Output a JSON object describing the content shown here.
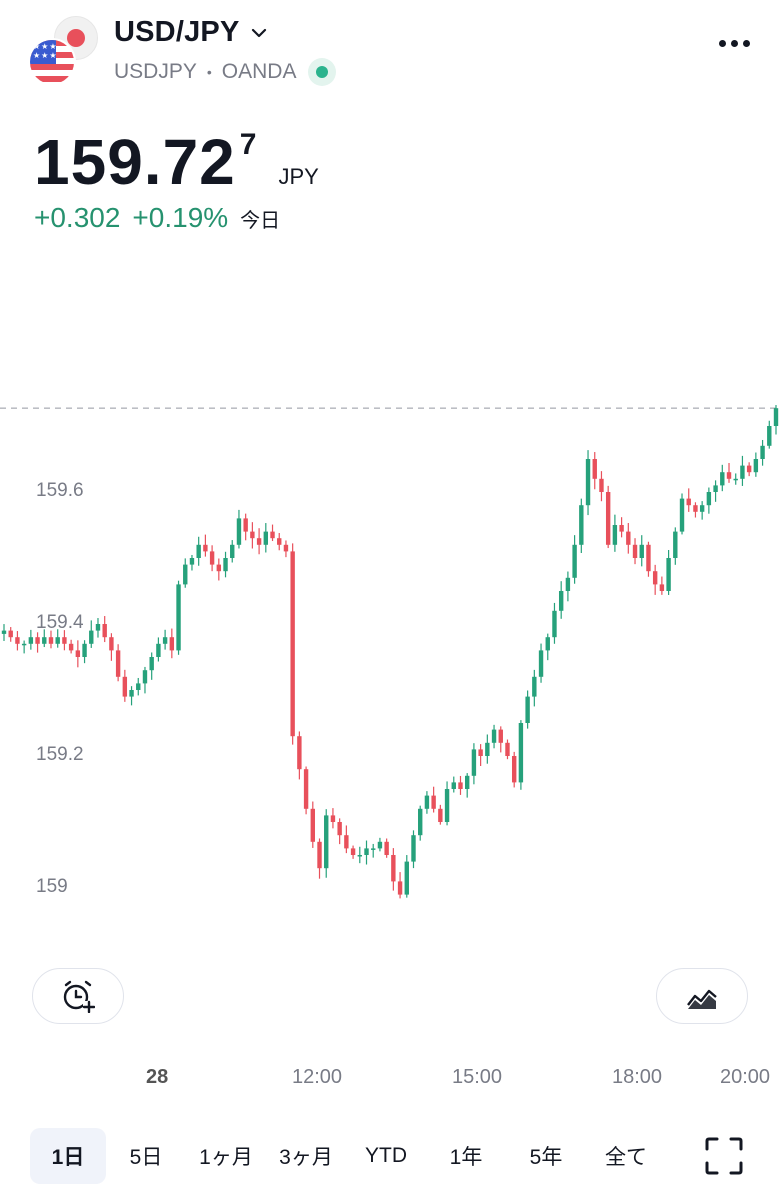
{
  "header": {
    "symbol_title": "USD/JPY",
    "symbol_code": "USDJPY",
    "separator": "•",
    "exchange": "OANDA",
    "market_status_color": "#2bb38d"
  },
  "quote": {
    "price_main": "159.72",
    "price_sup": "7",
    "currency": "JPY",
    "change": "+0.302",
    "change_pct": "+0.19%",
    "period": "今日",
    "up_color": "#26926f"
  },
  "chart_data": {
    "type": "candlestick",
    "y_ticks": [
      "159.6",
      "159.4",
      "159.2",
      "159"
    ],
    "ylim": [
      158.95,
      159.75
    ],
    "last_price": 159.727,
    "x_labels": [
      "28",
      "12:00",
      "15:00",
      "18:00",
      "20:00"
    ],
    "up_color": "#26a17b",
    "down_color": "#e8505b",
    "close_series": [
      159.39,
      159.38,
      159.37,
      159.37,
      159.38,
      159.37,
      159.38,
      159.37,
      159.38,
      159.37,
      159.36,
      159.35,
      159.37,
      159.39,
      159.4,
      159.38,
      159.36,
      159.32,
      159.29,
      159.3,
      159.31,
      159.33,
      159.35,
      159.37,
      159.38,
      159.36,
      159.46,
      159.49,
      159.5,
      159.52,
      159.51,
      159.49,
      159.48,
      159.5,
      159.52,
      159.56,
      159.54,
      159.53,
      159.52,
      159.54,
      159.53,
      159.52,
      159.51,
      159.23,
      159.18,
      159.12,
      159.07,
      159.03,
      159.11,
      159.1,
      159.08,
      159.06,
      159.05,
      159.05,
      159.06,
      159.06,
      159.07,
      159.05,
      159.01,
      158.99,
      159.04,
      159.08,
      159.12,
      159.14,
      159.12,
      159.1,
      159.15,
      159.16,
      159.15,
      159.17,
      159.21,
      159.2,
      159.22,
      159.24,
      159.22,
      159.2,
      159.16,
      159.25,
      159.29,
      159.32,
      159.36,
      159.38,
      159.42,
      159.45,
      159.47,
      159.52,
      159.58,
      159.65,
      159.62,
      159.6,
      159.52,
      159.55,
      159.54,
      159.52,
      159.5,
      159.52,
      159.48,
      159.46,
      159.45,
      159.5,
      159.54,
      159.59,
      159.58,
      159.57,
      159.58,
      159.6,
      159.61,
      159.63,
      159.62,
      159.62,
      159.64,
      159.63,
      159.65,
      159.67,
      159.7,
      159.727
    ]
  },
  "buttons": {
    "alert": "alarm-add",
    "indicators": "chart-style"
  },
  "ranges": [
    "1日",
    "5日",
    "1ヶ月",
    "3ヶ月",
    "YTD",
    "1年",
    "5年",
    "全て"
  ],
  "active_range": "1日"
}
